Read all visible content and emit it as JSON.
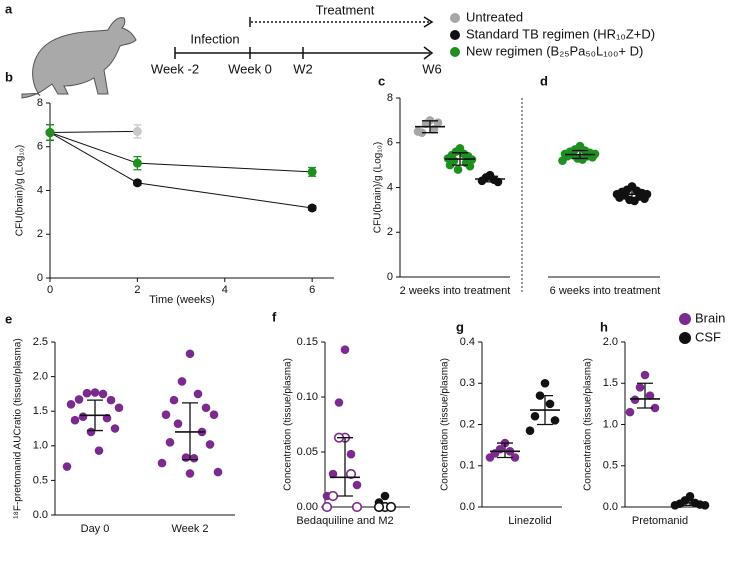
{
  "chart_data": [
    {
      "type": "schematic",
      "panel_label": "a",
      "timeline": {
        "ticks": [
          "Week -2",
          "Week 0",
          "W2",
          "W6"
        ],
        "phases": [
          "Infection",
          "Treatment"
        ]
      },
      "legend": [
        {
          "name": "Untreated",
          "color": "#a6a6a6"
        },
        {
          "name": "Standard TB regimen (HR₁₀Z+D)",
          "color": "#111111"
        },
        {
          "name": "New regimen (B₂₅Pa₅₀L₁₀₀+ D)",
          "color": "#1f8f1f"
        }
      ]
    },
    {
      "type": "line",
      "panel_label": "b",
      "ylabel": "CFU(brain)/g (Log₁₀)",
      "xlabel": "Time (weeks)",
      "x": [
        0,
        2,
        6
      ],
      "xlim": [
        0,
        6.5
      ],
      "xticks": [
        0,
        2,
        4,
        6
      ],
      "ylim": [
        0,
        8
      ],
      "yticks": [
        0,
        2,
        4,
        6,
        8
      ],
      "series": [
        {
          "color": "#c8c8c8",
          "values": [
            6.65,
            6.7,
            null
          ],
          "errors": [
            0.35,
            0.3,
            null
          ]
        },
        {
          "color": "#111111",
          "values": [
            6.65,
            4.35,
            3.2
          ],
          "errors": [
            0.35,
            0.1,
            0.1
          ]
        },
        {
          "color": "#1f8f1f",
          "values": [
            6.65,
            5.25,
            4.85
          ],
          "errors": [
            0.35,
            0.3,
            0.2
          ]
        }
      ]
    },
    {
      "type": "strip",
      "panel_label": "c",
      "ylabel": "CFU(brain)/g (Log₁₀)",
      "ylim": [
        0,
        8
      ],
      "yticks": [
        0,
        2,
        4,
        6,
        8
      ],
      "categories": [
        "2 weeks into treatment"
      ],
      "series": [
        {
          "color": "#a6a6a6",
          "values": [
            7.0,
            6.85,
            6.6,
            6.45,
            6.9,
            6.5
          ],
          "summary": {
            "center": 6.72,
            "low": 6.45,
            "high": 6.98
          }
        },
        {
          "color": "#1f8f1f",
          "values": [
            5.75,
            5.6,
            5.5,
            5.45,
            5.4,
            5.3,
            5.25,
            5.2,
            5.1,
            5.0,
            4.95,
            4.8
          ],
          "summary": {
            "center": 5.27,
            "low": 5.0,
            "high": 5.55
          }
        },
        {
          "color": "#111111",
          "values": [
            4.55,
            4.45,
            4.35,
            4.3,
            4.25
          ],
          "summary": {
            "center": 4.38,
            "low": 4.25,
            "high": 4.5
          }
        }
      ]
    },
    {
      "type": "strip",
      "panel_label": "d",
      "ylim": [
        0,
        8
      ],
      "categories": [
        "6 weeks into treatment"
      ],
      "series": [
        {
          "color": "#1f8f1f",
          "values": [
            5.85,
            5.7,
            5.65,
            5.6,
            5.55,
            5.5,
            5.5,
            5.45,
            5.4,
            5.4,
            5.35,
            5.3,
            5.25,
            5.2
          ],
          "summary": {
            "center": 5.47,
            "low": 5.3,
            "high": 5.65
          }
        },
        {
          "color": "#111111",
          "values": [
            4.05,
            3.9,
            3.85,
            3.8,
            3.75,
            3.7,
            3.7,
            3.65,
            3.6,
            3.55,
            3.5,
            3.45,
            3.4
          ],
          "summary": {
            "center": 3.7,
            "low": 3.5,
            "high": 3.9
          }
        }
      ]
    },
    {
      "type": "strip",
      "panel_label": "e",
      "ylabel": "¹⁸F-pretomanid AUCratio (tissue/plasma)",
      "ylim": [
        0,
        2.5
      ],
      "yticks": [
        {
          "value": 0,
          "label": "0.0"
        },
        0.5,
        {
          "value": 1,
          "label": "1.0"
        },
        1.5,
        {
          "value": 2,
          "label": "2.0"
        },
        2.5
      ],
      "categories": [
        "Day 0",
        "Week 2"
      ],
      "series": [
        {
          "color": "#7b2a8e",
          "values": [
            1.77,
            1.76,
            1.75,
            1.67,
            1.66,
            1.6,
            1.55,
            1.42,
            1.4,
            1.37,
            1.25,
            1.2,
            0.93,
            0.7
          ],
          "summary": {
            "center": 1.44,
            "low": 1.22,
            "high": 1.66
          }
        },
        {
          "color": "#7b2a8e",
          "values": [
            2.33,
            1.93,
            1.75,
            1.66,
            1.55,
            1.45,
            1.45,
            1.32,
            1.2,
            1.05,
            1.02,
            0.83,
            0.82,
            0.75,
            0.62,
            0.6
          ],
          "summary": {
            "center": 1.2,
            "low": 0.8,
            "high": 1.62
          }
        }
      ]
    },
    {
      "type": "strip",
      "panel_label": "f",
      "ylabel": "Concentration (tissue/plasma)",
      "ylim": [
        0,
        0.15
      ],
      "yticks": [
        {
          "value": 0,
          "label": "0.00"
        },
        0.05,
        {
          "value": 0.1,
          "label": "0.10"
        },
        0.15
      ],
      "categories": [
        "Bedaquiline and M2"
      ],
      "series": [
        {
          "color": "#7b2a8e",
          "style": "filled",
          "values": [
            0.143,
            0.095,
            0.048,
            0.03,
            0.02,
            0.01
          ],
          "summary": {
            "center": 0.027,
            "low": 0.01,
            "high": 0.063
          }
        },
        {
          "color": "#7b2a8e",
          "style": "open",
          "values": [
            0.063,
            0.063,
            0.03,
            0.01,
            0,
            0
          ]
        },
        {
          "color": "#111111",
          "style": "filled",
          "values": [
            0.01,
            0.004
          ]
        },
        {
          "color": "#111111",
          "style": "open",
          "values": [
            0,
            0,
            0
          ]
        }
      ]
    },
    {
      "type": "strip",
      "panel_label": "g",
      "ylabel": "Concentration (tissue/plasma)",
      "ylim": [
        0,
        0.4
      ],
      "yticks": [
        {
          "value": 0,
          "label": "0.0"
        },
        0.1,
        0.2,
        0.3,
        0.4
      ],
      "categories": [
        "Linezolid"
      ],
      "series": [
        {
          "color": "#7b2a8e",
          "values": [
            0.155,
            0.14,
            0.135,
            0.13,
            0.12,
            0.12
          ],
          "summary": {
            "center": 0.135,
            "low": 0.12,
            "high": 0.155
          }
        },
        {
          "color": "#111111",
          "values": [
            0.3,
            0.27,
            0.25,
            0.22,
            0.21,
            0.185
          ],
          "summary": {
            "center": 0.235,
            "low": 0.2,
            "high": 0.27
          }
        }
      ]
    },
    {
      "type": "strip",
      "panel_label": "h",
      "ylabel": "Concentration (tissue/plasma)",
      "ylim": [
        0,
        2
      ],
      "yticks": [
        {
          "value": 0,
          "label": "0.0"
        },
        0.5,
        {
          "value": 1,
          "label": "1.0"
        },
        1.5,
        {
          "value": 2,
          "label": "2.0"
        }
      ],
      "categories": [
        "Pretomanid"
      ],
      "series": [
        {
          "name": "Brain",
          "color": "#7b2a8e",
          "values": [
            1.6,
            1.45,
            1.35,
            1.3,
            1.2,
            1.15
          ],
          "summary": {
            "center": 1.31,
            "low": 1.2,
            "high": 1.5
          }
        },
        {
          "name": "CSF",
          "color": "#111111",
          "values": [
            0.13,
            0.08,
            0.05,
            0.04,
            0.03,
            0.02,
            0.02
          ],
          "summary": {
            "center": 0.05,
            "low": 0.02,
            "high": 0.08
          }
        }
      ]
    }
  ]
}
